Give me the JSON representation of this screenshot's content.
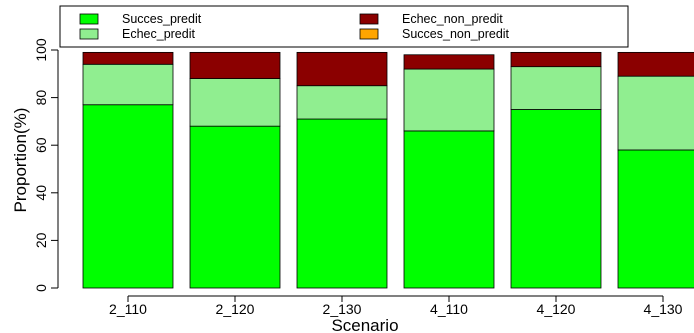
{
  "chart_data": {
    "type": "bar",
    "stacked": true,
    "title": "",
    "xlabel": "Scenario",
    "ylabel": "Proportion(%)",
    "ylim": [
      0,
      100
    ],
    "yticks": [
      0,
      20,
      40,
      60,
      80,
      100
    ],
    "categories": [
      "2_110",
      "2_120",
      "2_130",
      "4_110",
      "4_120",
      "4_130"
    ],
    "series": [
      {
        "name": "Succes_predit",
        "color": "#00ff00",
        "values": [
          77,
          68,
          71,
          66,
          75,
          58
        ]
      },
      {
        "name": "Succes_non_predit",
        "color": "#ffa500",
        "values": [
          0,
          0,
          0,
          0,
          0,
          0
        ]
      },
      {
        "name": "Echec_predit",
        "color": "#90ee90",
        "values": [
          17,
          20,
          14,
          26,
          18,
          31
        ]
      },
      {
        "name": "Echec_non_predit",
        "color": "#8b0000",
        "values": [
          5,
          11,
          14,
          6,
          6,
          10
        ]
      }
    ],
    "legend": {
      "placement": "top",
      "order": [
        "Succes_predit",
        "Echec_predit",
        "Echec_non_predit",
        "Succes_non_predit"
      ]
    },
    "grid": false
  }
}
